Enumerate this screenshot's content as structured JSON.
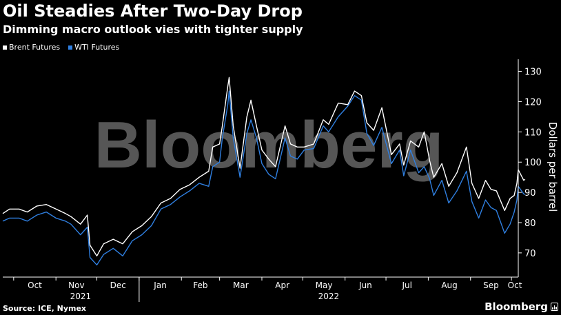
{
  "header": {
    "title": "Oil Steadies After Two-Day Drop",
    "subtitle": "Dimming macro outlook vies with tighter supply"
  },
  "footer": {
    "source": "Source: ICE, Nymex",
    "brand": "Bloomberg"
  },
  "watermark": "Bloomberg",
  "colors": {
    "background": "#000000",
    "brent": "#ffffff",
    "wti": "#2f7fe0",
    "axis": "#ffffff",
    "grid": "#555555",
    "watermark": "#7a7a7a"
  },
  "chart_data": {
    "type": "line",
    "title": "Oil Steadies After Two-Day Drop",
    "subtitle": "Dimming macro outlook vies with tighter supply",
    "ylabel": "Dollars per barrel",
    "xlabel": "",
    "ylim": [
      62,
      134
    ],
    "yticks": [
      70,
      80,
      90,
      100,
      110,
      120,
      130
    ],
    "y_axis_side": "right",
    "grid": false,
    "legend_position": "top-left",
    "x_months": [
      "Oct",
      "Nov",
      "Dec",
      "Jan",
      "Feb",
      "Mar",
      "Apr",
      "May",
      "Jun",
      "Jul",
      "Aug",
      "Sep",
      "Oct"
    ],
    "x_years": [
      "2021",
      "2022"
    ],
    "x_start": "2021-09-23",
    "x_end": "2022-10-06",
    "series": [
      {
        "name": "Brent Futures",
        "color": "#ffffff",
        "points": [
          [
            "2021-09-23",
            83.0
          ],
          [
            "2021-09-28",
            84.5
          ],
          [
            "2021-10-05",
            84.5
          ],
          [
            "2021-10-11",
            83.5
          ],
          [
            "2021-10-18",
            85.5
          ],
          [
            "2021-10-25",
            86.0
          ],
          [
            "2021-11-01",
            84.5
          ],
          [
            "2021-11-08",
            83.0
          ],
          [
            "2021-11-12",
            82.0
          ],
          [
            "2021-11-19",
            79.5
          ],
          [
            "2021-11-24",
            82.5
          ],
          [
            "2021-11-26",
            72.5
          ],
          [
            "2021-12-01",
            69.0
          ],
          [
            "2021-12-06",
            73.0
          ],
          [
            "2021-12-13",
            74.5
          ],
          [
            "2021-12-20",
            73.0
          ],
          [
            "2021-12-27",
            77.0
          ],
          [
            "2022-01-03",
            79.0
          ],
          [
            "2022-01-10",
            82.0
          ],
          [
            "2022-01-17",
            86.5
          ],
          [
            "2022-01-24",
            88.0
          ],
          [
            "2022-01-31",
            91.0
          ],
          [
            "2022-02-07",
            92.5
          ],
          [
            "2022-02-14",
            95.0
          ],
          [
            "2022-02-21",
            97.0
          ],
          [
            "2022-02-24",
            105.0
          ],
          [
            "2022-03-01",
            106.0
          ],
          [
            "2022-03-03",
            112.0
          ],
          [
            "2022-03-07",
            125.0
          ],
          [
            "2022-03-08",
            128.0
          ],
          [
            "2022-03-11",
            112.0
          ],
          [
            "2022-03-16",
            98.0
          ],
          [
            "2022-03-21",
            115.0
          ],
          [
            "2022-03-24",
            120.5
          ],
          [
            "2022-03-28",
            112.0
          ],
          [
            "2022-04-01",
            104.0
          ],
          [
            "2022-04-06",
            101.0
          ],
          [
            "2022-04-11",
            98.5
          ],
          [
            "2022-04-18",
            112.0
          ],
          [
            "2022-04-22",
            106.0
          ],
          [
            "2022-04-27",
            105.0
          ],
          [
            "2022-05-02",
            105.0
          ],
          [
            "2022-05-09",
            106.0
          ],
          [
            "2022-05-16",
            114.0
          ],
          [
            "2022-05-20",
            112.5
          ],
          [
            "2022-05-27",
            119.5
          ],
          [
            "2022-06-03",
            119.0
          ],
          [
            "2022-06-08",
            123.5
          ],
          [
            "2022-06-13",
            122.0
          ],
          [
            "2022-06-17",
            113.0
          ],
          [
            "2022-06-22",
            110.5
          ],
          [
            "2022-06-28",
            118.0
          ],
          [
            "2022-07-05",
            102.5
          ],
          [
            "2022-07-11",
            106.0
          ],
          [
            "2022-07-14",
            99.0
          ],
          [
            "2022-07-19",
            107.0
          ],
          [
            "2022-07-25",
            105.0
          ],
          [
            "2022-07-29",
            110.0
          ],
          [
            "2022-08-02",
            100.5
          ],
          [
            "2022-08-05",
            95.0
          ],
          [
            "2022-08-11",
            99.5
          ],
          [
            "2022-08-16",
            92.0
          ],
          [
            "2022-08-22",
            96.5
          ],
          [
            "2022-08-29",
            105.0
          ],
          [
            "2022-09-02",
            93.0
          ],
          [
            "2022-09-07",
            88.0
          ],
          [
            "2022-09-12",
            94.0
          ],
          [
            "2022-09-16",
            91.0
          ],
          [
            "2022-09-20",
            90.5
          ],
          [
            "2022-09-26",
            84.0
          ],
          [
            "2022-09-30",
            88.0
          ],
          [
            "2022-10-03",
            89.0
          ],
          [
            "2022-10-05",
            93.0
          ],
          [
            "2022-10-06",
            97.5
          ],
          [
            "2022-10-10",
            94.0
          ],
          [
            "2022-10-11",
            94.3
          ]
        ]
      },
      {
        "name": "WTI Futures",
        "color": "#2f7fe0",
        "points": [
          [
            "2021-09-23",
            80.5
          ],
          [
            "2021-09-28",
            81.5
          ],
          [
            "2021-10-05",
            81.5
          ],
          [
            "2021-10-11",
            80.5
          ],
          [
            "2021-10-18",
            82.5
          ],
          [
            "2021-10-25",
            83.5
          ],
          [
            "2021-11-01",
            81.5
          ],
          [
            "2021-11-08",
            80.5
          ],
          [
            "2021-11-12",
            79.5
          ],
          [
            "2021-11-19",
            76.0
          ],
          [
            "2021-11-24",
            78.5
          ],
          [
            "2021-11-26",
            68.5
          ],
          [
            "2021-12-01",
            66.0
          ],
          [
            "2021-12-06",
            69.5
          ],
          [
            "2021-12-13",
            71.5
          ],
          [
            "2021-12-20",
            69.0
          ],
          [
            "2021-12-27",
            74.0
          ],
          [
            "2022-01-03",
            76.0
          ],
          [
            "2022-01-10",
            79.0
          ],
          [
            "2022-01-17",
            84.5
          ],
          [
            "2022-01-24",
            86.0
          ],
          [
            "2022-01-31",
            88.5
          ],
          [
            "2022-02-07",
            90.5
          ],
          [
            "2022-02-14",
            93.0
          ],
          [
            "2022-02-21",
            92.0
          ],
          [
            "2022-02-24",
            98.5
          ],
          [
            "2022-03-01",
            100.0
          ],
          [
            "2022-03-03",
            108.0
          ],
          [
            "2022-03-07",
            119.0
          ],
          [
            "2022-03-08",
            123.5
          ],
          [
            "2022-03-11",
            108.0
          ],
          [
            "2022-03-16",
            95.0
          ],
          [
            "2022-03-21",
            109.5
          ],
          [
            "2022-03-24",
            114.0
          ],
          [
            "2022-03-28",
            108.0
          ],
          [
            "2022-04-01",
            99.5
          ],
          [
            "2022-04-06",
            96.0
          ],
          [
            "2022-04-11",
            94.5
          ],
          [
            "2022-04-18",
            108.0
          ],
          [
            "2022-04-22",
            102.0
          ],
          [
            "2022-04-27",
            101.0
          ],
          [
            "2022-05-02",
            104.0
          ],
          [
            "2022-05-09",
            104.5
          ],
          [
            "2022-05-16",
            112.0
          ],
          [
            "2022-05-20",
            110.0
          ],
          [
            "2022-05-27",
            115.0
          ],
          [
            "2022-06-03",
            118.5
          ],
          [
            "2022-06-08",
            122.0
          ],
          [
            "2022-06-13",
            120.5
          ],
          [
            "2022-06-17",
            109.5
          ],
          [
            "2022-06-22",
            105.5
          ],
          [
            "2022-06-28",
            111.5
          ],
          [
            "2022-07-05",
            99.5
          ],
          [
            "2022-07-11",
            104.0
          ],
          [
            "2022-07-14",
            95.5
          ],
          [
            "2022-07-19",
            104.0
          ],
          [
            "2022-07-25",
            96.5
          ],
          [
            "2022-07-29",
            98.5
          ],
          [
            "2022-08-02",
            94.5
          ],
          [
            "2022-08-05",
            89.0
          ],
          [
            "2022-08-11",
            94.0
          ],
          [
            "2022-08-16",
            86.5
          ],
          [
            "2022-08-22",
            90.5
          ],
          [
            "2022-08-29",
            97.0
          ],
          [
            "2022-09-02",
            87.0
          ],
          [
            "2022-09-07",
            81.5
          ],
          [
            "2022-09-12",
            87.5
          ],
          [
            "2022-09-16",
            85.0
          ],
          [
            "2022-09-20",
            84.0
          ],
          [
            "2022-09-26",
            76.5
          ],
          [
            "2022-09-30",
            79.5
          ],
          [
            "2022-10-03",
            83.5
          ],
          [
            "2022-10-05",
            87.5
          ],
          [
            "2022-10-06",
            92.0
          ],
          [
            "2022-10-10",
            89.5
          ],
          [
            "2022-10-11",
            89.3
          ]
        ]
      }
    ]
  }
}
